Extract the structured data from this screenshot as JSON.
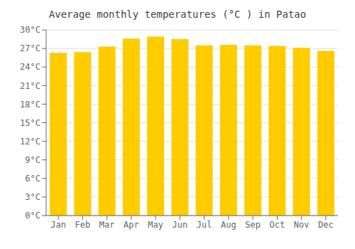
{
  "chart_data": {
    "type": "bar",
    "title": "Average monthly temperatures (°C ) in Patao",
    "categories": [
      "Jan",
      "Feb",
      "Mar",
      "Apr",
      "May",
      "Jun",
      "Jul",
      "Aug",
      "Sep",
      "Oct",
      "Nov",
      "Dec"
    ],
    "values": [
      26.3,
      26.4,
      27.3,
      28.6,
      28.9,
      28.5,
      27.5,
      27.6,
      27.5,
      27.4,
      27.1,
      26.6
    ],
    "color": "#FFCC00",
    "ylim": [
      0,
      30
    ],
    "yticks": [
      {
        "value": 0,
        "label": "0°C"
      },
      {
        "value": 3,
        "label": "3°C"
      },
      {
        "value": 6,
        "label": "6°C"
      },
      {
        "value": 9,
        "label": "9°C"
      },
      {
        "value": 12,
        "label": "12°C"
      },
      {
        "value": 15,
        "label": "15°C"
      },
      {
        "value": 18,
        "label": "18°C"
      },
      {
        "value": 21,
        "label": "21°C"
      },
      {
        "value": 24,
        "label": "24°C"
      },
      {
        "value": 27,
        "label": "27°C"
      },
      {
        "value": 30,
        "label": "30°C"
      }
    ],
    "grid": true
  }
}
